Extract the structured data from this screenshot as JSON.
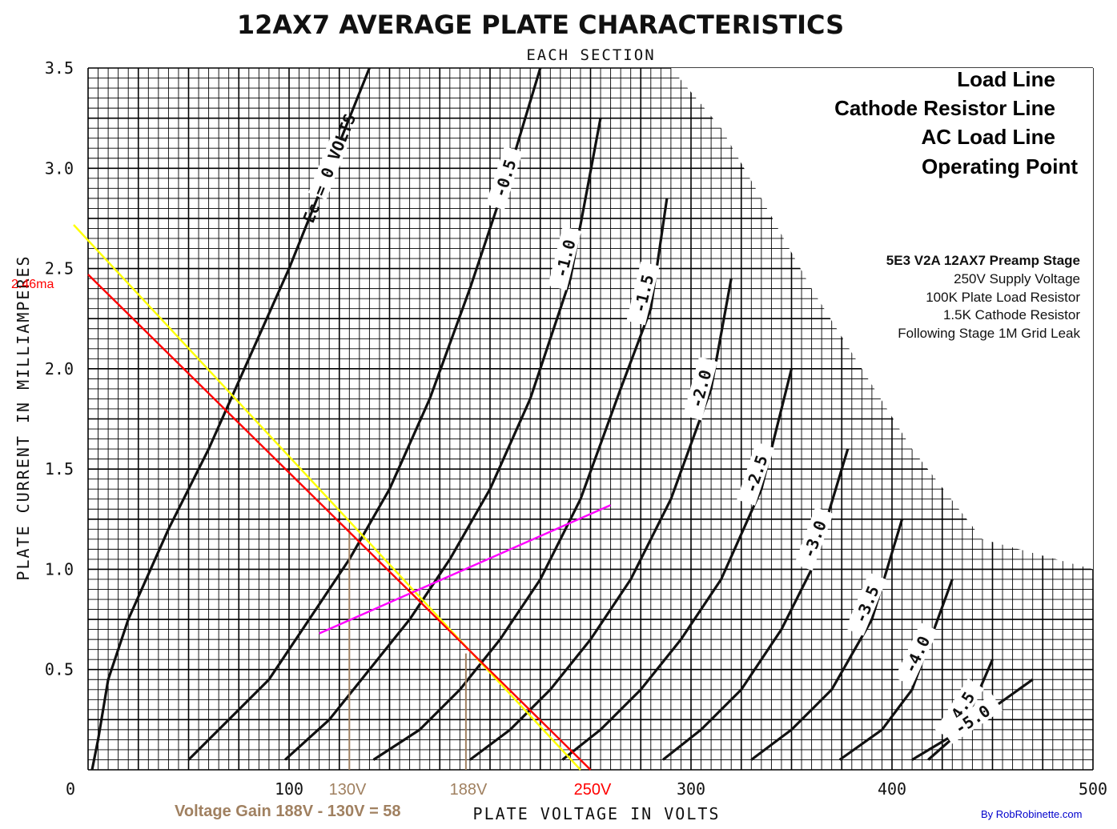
{
  "chart_data": {
    "type": "line",
    "title": "12AX7 AVERAGE PLATE CHARACTERISTICS",
    "subtitle": "EACH SECTION",
    "xlabel": "PLATE VOLTAGE IN VOLTS",
    "ylabel": "PLATE CURRENT IN MILLIAMPERES",
    "xlim": [
      0,
      500
    ],
    "ylim": [
      0,
      3.5
    ],
    "x_ticks": [
      "0",
      "100",
      "300",
      "400",
      "500"
    ],
    "y_ticks": [
      "0.5",
      "1.0",
      "1.5",
      "2.0",
      "2.5",
      "3.0",
      "3.5"
    ],
    "grid": true,
    "series": [
      {
        "name": "Ec = 0 VOLTS",
        "label": "Ec = 0 VOLTS",
        "points": [
          [
            2,
            0
          ],
          [
            5,
            0.15
          ],
          [
            10,
            0.45
          ],
          [
            20,
            0.75
          ],
          [
            40,
            1.2
          ],
          [
            60,
            1.6
          ],
          [
            80,
            2.05
          ],
          [
            100,
            2.5
          ],
          [
            120,
            3.0
          ],
          [
            140,
            3.5
          ]
        ]
      },
      {
        "name": "-0.5",
        "label": "-0.5",
        "points": [
          [
            50,
            0.05
          ],
          [
            70,
            0.25
          ],
          [
            90,
            0.45
          ],
          [
            110,
            0.75
          ],
          [
            130,
            1.05
          ],
          [
            150,
            1.4
          ],
          [
            170,
            1.85
          ],
          [
            190,
            2.4
          ],
          [
            210,
            3.0
          ],
          [
            225,
            3.5
          ]
        ]
      },
      {
        "name": "-1.0",
        "label": "-1.0",
        "points": [
          [
            98,
            0.05
          ],
          [
            120,
            0.25
          ],
          [
            140,
            0.5
          ],
          [
            160,
            0.75
          ],
          [
            180,
            1.05
          ],
          [
            200,
            1.4
          ],
          [
            220,
            1.85
          ],
          [
            240,
            2.45
          ],
          [
            255,
            3.25
          ]
        ]
      },
      {
        "name": "-1.5",
        "label": "-1.5",
        "points": [
          [
            142,
            0.05
          ],
          [
            165,
            0.2
          ],
          [
            185,
            0.4
          ],
          [
            205,
            0.65
          ],
          [
            225,
            0.95
          ],
          [
            245,
            1.35
          ],
          [
            265,
            1.9
          ],
          [
            280,
            2.3
          ],
          [
            288,
            2.85
          ]
        ]
      },
      {
        "name": "-2.0",
        "label": "-2.0",
        "points": [
          [
            190,
            0.05
          ],
          [
            210,
            0.2
          ],
          [
            230,
            0.4
          ],
          [
            250,
            0.65
          ],
          [
            270,
            0.95
          ],
          [
            290,
            1.35
          ],
          [
            310,
            1.9
          ],
          [
            320,
            2.45
          ]
        ]
      },
      {
        "name": "-2.5",
        "label": "-2.5",
        "points": [
          [
            236,
            0.05
          ],
          [
            255,
            0.2
          ],
          [
            275,
            0.4
          ],
          [
            295,
            0.65
          ],
          [
            315,
            0.95
          ],
          [
            335,
            1.4
          ],
          [
            350,
            2.0
          ]
        ]
      },
      {
        "name": "-3.0",
        "label": "-3.0",
        "points": [
          [
            286,
            0.05
          ],
          [
            305,
            0.2
          ],
          [
            325,
            0.4
          ],
          [
            345,
            0.7
          ],
          [
            360,
            1.0
          ],
          [
            378,
            1.6
          ]
        ]
      },
      {
        "name": "-3.5",
        "label": "-3.5",
        "points": [
          [
            330,
            0.05
          ],
          [
            350,
            0.2
          ],
          [
            370,
            0.4
          ],
          [
            390,
            0.75
          ],
          [
            405,
            1.25
          ]
        ]
      },
      {
        "name": "-4.0",
        "label": "-4.0",
        "points": [
          [
            374,
            0.05
          ],
          [
            395,
            0.2
          ],
          [
            410,
            0.4
          ],
          [
            430,
            0.95
          ]
        ]
      },
      {
        "name": "-4.5",
        "label": "-4.5",
        "points": [
          [
            418,
            0.05
          ],
          [
            435,
            0.2
          ],
          [
            450,
            0.55
          ]
        ]
      },
      {
        "name": "-5.0",
        "label": "-5.0",
        "points": [
          [
            410,
            0.05
          ],
          [
            435,
            0.2
          ],
          [
            470,
            0.45
          ]
        ]
      }
    ],
    "overlays": [
      {
        "name": "Load Line",
        "color": "#ff0000",
        "points": [
          [
            0,
            2.46
          ],
          [
            250,
            0
          ]
        ],
        "label": "2.46ma",
        "label_color": "#ff0000"
      },
      {
        "name": "AC Load Line",
        "color": "#ffff00",
        "points": [
          [
            0,
            2.7
          ],
          [
            245,
            0
          ]
        ]
      },
      {
        "name": "Cathode Resistor Line",
        "color": "#ff00ff",
        "points": [
          [
            115,
            0.68
          ],
          [
            260,
            1.32
          ]
        ]
      },
      {
        "name": "Operating Point",
        "color": "#00cc00"
      }
    ],
    "markers": [
      {
        "label": "130V",
        "x": 130,
        "y_top": 1.2,
        "color": "#a08060"
      },
      {
        "label": "188V",
        "x": 188,
        "y_top": 0.58,
        "color": "#a08060"
      },
      {
        "label": "250V",
        "x": 250,
        "color": "#ff0000"
      }
    ],
    "annotations": {
      "legend": [
        {
          "text": "Load Line",
          "color": "#ff0000"
        },
        {
          "text": "Cathode Resistor Line",
          "color": "#ff00ff"
        },
        {
          "text": "AC Load Line",
          "color": "#ffff00"
        },
        {
          "text": "Operating Point",
          "color": "#00cc00"
        }
      ],
      "info_title": "5E3 V2A 12AX7 Preamp Stage",
      "info_lines": [
        "250V Supply Voltage",
        "100K Plate Load Resistor",
        "1.5K Cathode Resistor",
        "Following Stage 1M Grid Leak"
      ],
      "gain": "Voltage Gain 188V - 130V = 58",
      "gain_color": "#a08060",
      "credit": "By RobRobinette.com",
      "credit_color": "#0000cc"
    }
  }
}
